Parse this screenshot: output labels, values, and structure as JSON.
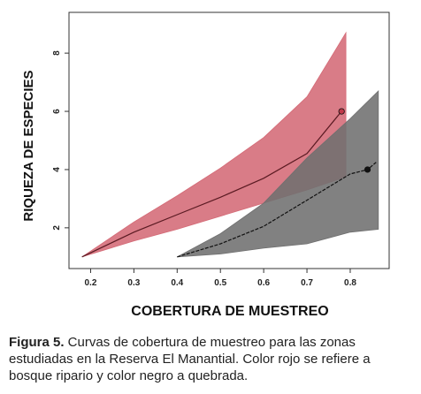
{
  "chart_data": {
    "type": "line",
    "title": "",
    "xlabel": "COBERTURA DE MUESTREO",
    "ylabel": "RIQUEZA DE ESPECIES",
    "xlim": [
      0.15,
      0.89
    ],
    "ylim": [
      0.6,
      9.4
    ],
    "xticks": [
      0.2,
      0.3,
      0.4,
      0.5,
      0.6,
      0.7,
      0.8
    ],
    "yticks": [
      2,
      4,
      6,
      8
    ],
    "grid": false,
    "legend": "none",
    "series": [
      {
        "color": "#c0394a",
        "band_color": "#d46a76",
        "curve": [
          [
            0.18,
            1.0
          ],
          [
            0.3,
            1.85
          ],
          [
            0.4,
            2.45
          ],
          [
            0.5,
            3.05
          ],
          [
            0.6,
            3.7
          ],
          [
            0.7,
            4.55
          ],
          [
            0.78,
            6.0
          ]
        ],
        "upper": [
          [
            0.18,
            1.0
          ],
          [
            0.3,
            2.2
          ],
          [
            0.4,
            3.1
          ],
          [
            0.5,
            4.05
          ],
          [
            0.6,
            5.1
          ],
          [
            0.7,
            6.5
          ],
          [
            0.79,
            8.7
          ]
        ],
        "lower": [
          [
            0.18,
            1.0
          ],
          [
            0.3,
            1.55
          ],
          [
            0.4,
            1.95
          ],
          [
            0.5,
            2.4
          ],
          [
            0.6,
            2.85
          ],
          [
            0.7,
            3.3
          ],
          [
            0.79,
            3.75
          ]
        ],
        "endpoint": [
          0.78,
          6.0
        ]
      },
      {
        "color": "#111111",
        "band_color": "#6f6f6f",
        "curve": [
          [
            0.4,
            1.0
          ],
          [
            0.5,
            1.45
          ],
          [
            0.6,
            2.05
          ],
          [
            0.7,
            2.95
          ],
          [
            0.8,
            3.85
          ],
          [
            0.84,
            4.0
          ],
          [
            0.86,
            4.25
          ]
        ],
        "upper": [
          [
            0.4,
            1.0
          ],
          [
            0.5,
            1.8
          ],
          [
            0.6,
            2.85
          ],
          [
            0.7,
            4.4
          ],
          [
            0.8,
            5.75
          ],
          [
            0.865,
            6.7
          ]
        ],
        "lower": [
          [
            0.4,
            1.0
          ],
          [
            0.5,
            1.1
          ],
          [
            0.6,
            1.3
          ],
          [
            0.7,
            1.45
          ],
          [
            0.8,
            1.85
          ],
          [
            0.865,
            1.95
          ]
        ],
        "endpoint": [
          0.84,
          4.0
        ]
      }
    ]
  },
  "caption": {
    "label": "Figura 5.",
    "text": " Curvas de cobertura de muestreo para las zonas estudiadas en la Reserva El Manantial. Color rojo se refiere a bosque ripario y color negro a quebrada."
  }
}
